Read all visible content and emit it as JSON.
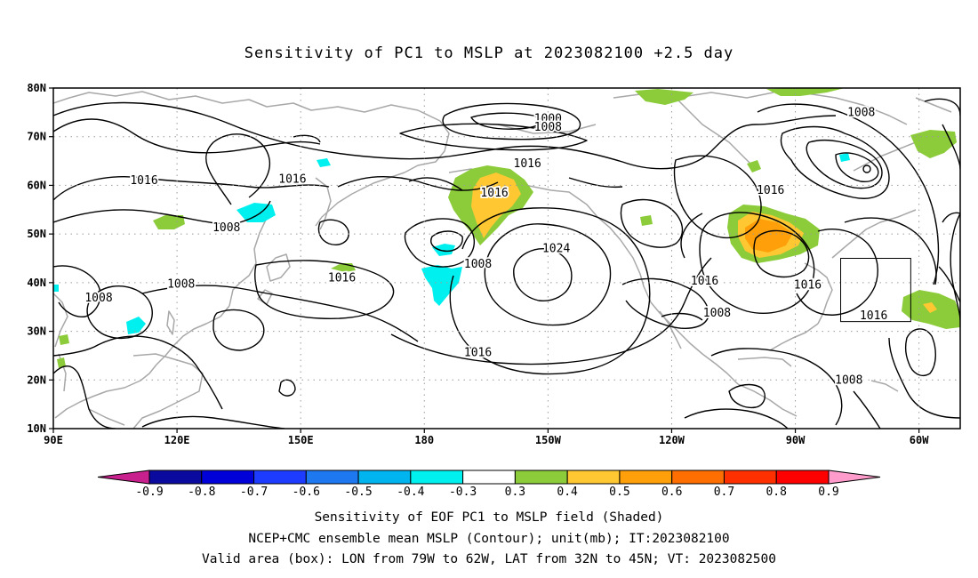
{
  "title": "Sensitivity of PC1 to MSLP at 2023082100 +2.5 day",
  "map": {
    "lat_labels": [
      "80N",
      "70N",
      "60N",
      "50N",
      "40N",
      "30N",
      "20N",
      "10N"
    ],
    "lon_labels": [
      "90E",
      "120E",
      "150E",
      "180",
      "150W",
      "120W",
      "90W",
      "60W"
    ],
    "contour_labels": [
      {
        "text": "1000",
        "lon": 210,
        "lat": 73.7
      },
      {
        "text": "1008",
        "lon": 210,
        "lat": 72.0
      },
      {
        "text": "1008",
        "lon": 286,
        "lat": 75.0
      },
      {
        "text": "1016",
        "lon": 112,
        "lat": 61.0
      },
      {
        "text": "1016",
        "lon": 148,
        "lat": 61.3
      },
      {
        "text": "1016",
        "lon": 205,
        "lat": 64.5
      },
      {
        "text": "1016",
        "lon": 264,
        "lat": 59.0
      },
      {
        "text": "1016",
        "lon": 197,
        "lat": 58.4
      },
      {
        "text": "1008",
        "lon": 132,
        "lat": 51.3
      },
      {
        "text": "1008",
        "lon": 193,
        "lat": 43.8
      },
      {
        "text": "1024",
        "lon": 212,
        "lat": 47.0
      },
      {
        "text": "1016",
        "lon": 160,
        "lat": 41.0
      },
      {
        "text": "1016",
        "lon": 248,
        "lat": 40.3
      },
      {
        "text": "1016",
        "lon": 273,
        "lat": 39.5
      },
      {
        "text": "1016",
        "lon": 289,
        "lat": 33.2
      },
      {
        "text": "1008",
        "lon": 101,
        "lat": 36.9
      },
      {
        "text": "1008",
        "lon": 121,
        "lat": 39.7
      },
      {
        "text": "1008",
        "lon": 251,
        "lat": 33.8
      },
      {
        "text": "1016",
        "lon": 193,
        "lat": 25.6
      },
      {
        "text": "1008",
        "lon": 283,
        "lat": 20.0
      }
    ],
    "box": {
      "lon_min": 281,
      "lon_max": 298,
      "lat_min": 32,
      "lat_max": 45
    }
  },
  "colorbar": {
    "labels": [
      "-0.9",
      "-0.8",
      "-0.7",
      "-0.6",
      "-0.5",
      "-0.4",
      "-0.3",
      "0.3",
      "0.4",
      "0.5",
      "0.6",
      "0.7",
      "0.8",
      "0.9"
    ],
    "colors": [
      "#0a0a9e",
      "#0000d8",
      "#1e3cff",
      "#1e78f0",
      "#00b4f0",
      "#00f0f0",
      "#ffffff",
      "#8ccc3a",
      "#ffc832",
      "#ffa00a",
      "#ff6e00",
      "#ff3000",
      "#ff0000"
    ],
    "low_end_color": "#c8208c",
    "high_end_color": "#ff9ccc"
  },
  "captions": {
    "line1": "Sensitivity of EOF PC1 to MSLP field (Shaded)",
    "line2": "NCEP+CMC ensemble mean MSLP (Contour); unit(mb); IT:2023082100",
    "line3": "Valid area (box): LON from 79W to 62W, LAT from 32N to 45N; VT: 2023082500"
  }
}
